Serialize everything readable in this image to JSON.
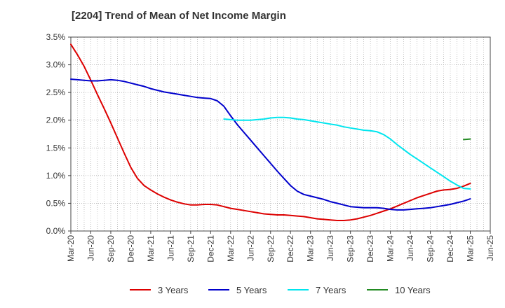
{
  "title": "[2204]  Trend of Mean of Net Income Margin",
  "chart_data": {
    "type": "line",
    "x_ticks": [
      "Mar-20",
      "Jun-20",
      "Sep-20",
      "Dec-20",
      "Mar-21",
      "Jun-21",
      "Sep-21",
      "Dec-21",
      "Mar-22",
      "Jun-22",
      "Sep-22",
      "Dec-22",
      "Mar-23",
      "Jun-23",
      "Sep-23",
      "Dec-23",
      "Mar-24",
      "Jun-24",
      "Sep-24",
      "Dec-24",
      "Mar-25",
      "Jun-25"
    ],
    "y_ticks": [
      "0.0%",
      "0.5%",
      "1.0%",
      "1.5%",
      "2.0%",
      "2.5%",
      "3.0%",
      "3.5%"
    ],
    "ylim": [
      0,
      3.5
    ],
    "y_unit": "%",
    "grid": true,
    "legend_position": "bottom",
    "series": [
      {
        "name": "3 Years",
        "color": "#dd0000",
        "points": [
          [
            "Mar-20",
            3.37
          ],
          [
            "Apr-20",
            3.18
          ],
          [
            "May-20",
            2.97
          ],
          [
            "Jun-20",
            2.72
          ],
          [
            "Jul-20",
            2.46
          ],
          [
            "Aug-20",
            2.21
          ],
          [
            "Sep-20",
            1.95
          ],
          [
            "Oct-20",
            1.68
          ],
          [
            "Nov-20",
            1.41
          ],
          [
            "Dec-20",
            1.15
          ],
          [
            "Jan-21",
            0.95
          ],
          [
            "Feb-21",
            0.82
          ],
          [
            "Mar-21",
            0.74
          ],
          [
            "Apr-21",
            0.67
          ],
          [
            "May-21",
            0.61
          ],
          [
            "Jun-21",
            0.56
          ],
          [
            "Jul-21",
            0.52
          ],
          [
            "Aug-21",
            0.49
          ],
          [
            "Sep-21",
            0.47
          ],
          [
            "Oct-21",
            0.47
          ],
          [
            "Nov-21",
            0.48
          ],
          [
            "Dec-21",
            0.48
          ],
          [
            "Jan-22",
            0.47
          ],
          [
            "Feb-22",
            0.44
          ],
          [
            "Mar-22",
            0.41
          ],
          [
            "Apr-22",
            0.39
          ],
          [
            "May-22",
            0.37
          ],
          [
            "Jun-22",
            0.35
          ],
          [
            "Jul-22",
            0.33
          ],
          [
            "Aug-22",
            0.31
          ],
          [
            "Sep-22",
            0.3
          ],
          [
            "Oct-22",
            0.29
          ],
          [
            "Nov-22",
            0.29
          ],
          [
            "Dec-22",
            0.28
          ],
          [
            "Jan-23",
            0.27
          ],
          [
            "Feb-23",
            0.26
          ],
          [
            "Mar-23",
            0.24
          ],
          [
            "Apr-23",
            0.22
          ],
          [
            "May-23",
            0.21
          ],
          [
            "Jun-23",
            0.2
          ],
          [
            "Jul-23",
            0.19
          ],
          [
            "Aug-23",
            0.19
          ],
          [
            "Sep-23",
            0.2
          ],
          [
            "Oct-23",
            0.22
          ],
          [
            "Nov-23",
            0.25
          ],
          [
            "Dec-23",
            0.28
          ],
          [
            "Jan-24",
            0.32
          ],
          [
            "Feb-24",
            0.36
          ],
          [
            "Mar-24",
            0.4
          ],
          [
            "Apr-24",
            0.45
          ],
          [
            "May-24",
            0.5
          ],
          [
            "Jun-24",
            0.55
          ],
          [
            "Jul-24",
            0.6
          ],
          [
            "Aug-24",
            0.64
          ],
          [
            "Sep-24",
            0.68
          ],
          [
            "Oct-24",
            0.72
          ],
          [
            "Nov-24",
            0.74
          ],
          [
            "Dec-24",
            0.75
          ],
          [
            "Jan-25",
            0.77
          ],
          [
            "Feb-25",
            0.81
          ],
          [
            "Mar-25",
            0.86
          ]
        ]
      },
      {
        "name": "5 Years",
        "color": "#0000cc",
        "points": [
          [
            "Mar-20",
            2.74
          ],
          [
            "Apr-20",
            2.73
          ],
          [
            "May-20",
            2.72
          ],
          [
            "Jun-20",
            2.71
          ],
          [
            "Jul-20",
            2.71
          ],
          [
            "Aug-20",
            2.72
          ],
          [
            "Sep-20",
            2.73
          ],
          [
            "Oct-20",
            2.72
          ],
          [
            "Nov-20",
            2.7
          ],
          [
            "Dec-20",
            2.67
          ],
          [
            "Jan-21",
            2.64
          ],
          [
            "Feb-21",
            2.61
          ],
          [
            "Mar-21",
            2.57
          ],
          [
            "Apr-21",
            2.54
          ],
          [
            "May-21",
            2.51
          ],
          [
            "Jun-21",
            2.49
          ],
          [
            "Jul-21",
            2.47
          ],
          [
            "Aug-21",
            2.45
          ],
          [
            "Sep-21",
            2.43
          ],
          [
            "Oct-21",
            2.41
          ],
          [
            "Nov-21",
            2.4
          ],
          [
            "Dec-21",
            2.39
          ],
          [
            "Jan-22",
            2.35
          ],
          [
            "Feb-22",
            2.25
          ],
          [
            "Mar-22",
            2.08
          ],
          [
            "Apr-22",
            1.92
          ],
          [
            "May-22",
            1.78
          ],
          [
            "Jun-22",
            1.64
          ],
          [
            "Jul-22",
            1.5
          ],
          [
            "Aug-22",
            1.36
          ],
          [
            "Sep-22",
            1.22
          ],
          [
            "Oct-22",
            1.08
          ],
          [
            "Nov-22",
            0.95
          ],
          [
            "Dec-22",
            0.82
          ],
          [
            "Jan-23",
            0.72
          ],
          [
            "Feb-23",
            0.66
          ],
          [
            "Mar-23",
            0.63
          ],
          [
            "Apr-23",
            0.6
          ],
          [
            "May-23",
            0.57
          ],
          [
            "Jun-23",
            0.53
          ],
          [
            "Jul-23",
            0.5
          ],
          [
            "Aug-23",
            0.47
          ],
          [
            "Sep-23",
            0.44
          ],
          [
            "Oct-23",
            0.43
          ],
          [
            "Nov-23",
            0.42
          ],
          [
            "Dec-23",
            0.42
          ],
          [
            "Jan-24",
            0.42
          ],
          [
            "Feb-24",
            0.41
          ],
          [
            "Mar-24",
            0.39
          ],
          [
            "Apr-24",
            0.38
          ],
          [
            "May-24",
            0.38
          ],
          [
            "Jun-24",
            0.39
          ],
          [
            "Jul-24",
            0.4
          ],
          [
            "Aug-24",
            0.41
          ],
          [
            "Sep-24",
            0.42
          ],
          [
            "Oct-24",
            0.44
          ],
          [
            "Nov-24",
            0.46
          ],
          [
            "Dec-24",
            0.48
          ],
          [
            "Jan-25",
            0.51
          ],
          [
            "Feb-25",
            0.54
          ],
          [
            "Mar-25",
            0.58
          ]
        ]
      },
      {
        "name": "7 Years",
        "color": "#00e5ee",
        "points": [
          [
            "Feb-22",
            2.02
          ],
          [
            "Mar-22",
            2.01
          ],
          [
            "Apr-22",
            2.0
          ],
          [
            "May-22",
            2.0
          ],
          [
            "Jun-22",
            2.0
          ],
          [
            "Jul-22",
            2.01
          ],
          [
            "Aug-22",
            2.02
          ],
          [
            "Sep-22",
            2.04
          ],
          [
            "Oct-22",
            2.05
          ],
          [
            "Nov-22",
            2.05
          ],
          [
            "Dec-22",
            2.04
          ],
          [
            "Jan-23",
            2.02
          ],
          [
            "Feb-23",
            2.01
          ],
          [
            "Mar-23",
            1.99
          ],
          [
            "Apr-23",
            1.97
          ],
          [
            "May-23",
            1.95
          ],
          [
            "Jun-23",
            1.93
          ],
          [
            "Jul-23",
            1.91
          ],
          [
            "Aug-23",
            1.88
          ],
          [
            "Sep-23",
            1.86
          ],
          [
            "Oct-23",
            1.84
          ],
          [
            "Nov-23",
            1.82
          ],
          [
            "Dec-23",
            1.81
          ],
          [
            "Jan-24",
            1.79
          ],
          [
            "Feb-24",
            1.74
          ],
          [
            "Mar-24",
            1.66
          ],
          [
            "Apr-24",
            1.56
          ],
          [
            "May-24",
            1.47
          ],
          [
            "Jun-24",
            1.38
          ],
          [
            "Jul-24",
            1.3
          ],
          [
            "Aug-24",
            1.22
          ],
          [
            "Sep-24",
            1.14
          ],
          [
            "Oct-24",
            1.06
          ],
          [
            "Nov-24",
            0.98
          ],
          [
            "Dec-24",
            0.9
          ],
          [
            "Jan-25",
            0.83
          ],
          [
            "Feb-25",
            0.77
          ],
          [
            "Mar-25",
            0.76
          ]
        ]
      },
      {
        "name": "10 Years",
        "color": "#228b22",
        "points": [
          [
            "Feb-25",
            1.65
          ],
          [
            "Mar-25",
            1.66
          ]
        ]
      }
    ]
  }
}
